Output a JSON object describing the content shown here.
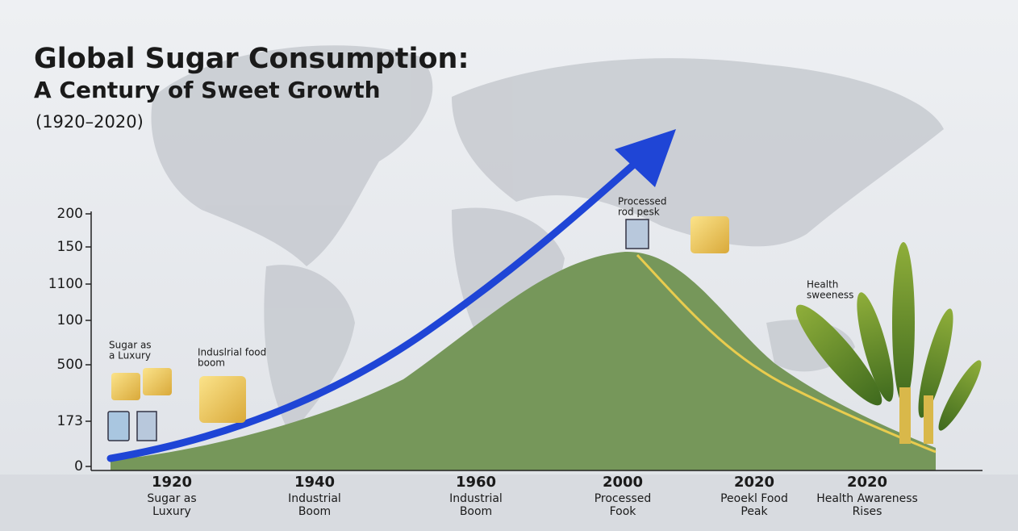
{
  "title": "Global Sugar Consumption:",
  "subtitle": "A Century of Sweet Growth",
  "period": "(1920–2020)",
  "y_axis_labels": [
    "200",
    "150",
    "1100",
    "100",
    "500",
    "173",
    "0"
  ],
  "x_labels": [
    {
      "year": "1920",
      "caption": [
        "Sugar as",
        "Luxury"
      ]
    },
    {
      "year": "1940",
      "caption": [
        "Industrial",
        "Boom"
      ]
    },
    {
      "year": "1960",
      "caption": [
        "Industrial",
        "Boom"
      ]
    },
    {
      "year": "2000",
      "caption": [
        "Processed",
        "Fook"
      ]
    },
    {
      "year": "2020",
      "caption": [
        "Peoekl Food",
        "Peak"
      ]
    },
    {
      "year": "2020",
      "caption": [
        "Health Awareness",
        "Rises"
      ]
    }
  ],
  "annotations": [
    {
      "lines": [
        "Sugar as",
        "a Luxury"
      ]
    },
    {
      "lines": [
        "Induslrial food",
        "boom"
      ]
    },
    {
      "lines": [
        "Processed",
        "rod pesk"
      ]
    },
    {
      "lines": [
        "Health",
        "sweeness"
      ]
    }
  ]
}
